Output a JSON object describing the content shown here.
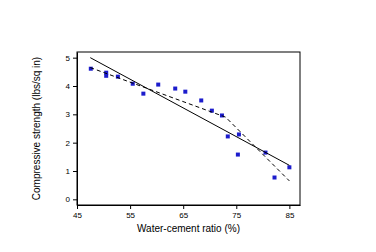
{
  "chart_data": {
    "type": "scatter",
    "x_label": "Water-cement ratio (%)",
    "y_label": "Compressive strength (lbs/sq in)",
    "xlim": [
      45,
      87
    ],
    "ylim": [
      -0.2,
      5.2
    ],
    "xticks": [
      45,
      55,
      65,
      75,
      85
    ],
    "yticks": [
      0,
      1,
      2,
      3,
      4,
      5
    ],
    "series": [
      {
        "type": "scatter",
        "marker": "square",
        "color": "#1c1ccc",
        "x": [
          47.6,
          50.5,
          50.5,
          52.7,
          55.5,
          57.5,
          60.3,
          63.5,
          65.4,
          68.4,
          70.4,
          72.3,
          73.4,
          75.5,
          75.3,
          80.5,
          82.2,
          85
        ],
        "values": [
          4.61,
          4.47,
          4.36,
          4.33,
          4.08,
          3.73,
          4.05,
          3.91,
          3.8,
          3.49,
          3.13,
          2.96,
          2.22,
          2.29,
          1.58,
          1.65,
          0.77,
          1.13
        ]
      },
      {
        "type": "line",
        "line_style": "solid",
        "color": "#000000",
        "x": [
          47.5,
          85
        ],
        "values": [
          5.0,
          1.2
        ]
      },
      {
        "type": "line",
        "line_style": "dashed",
        "color": "#000000",
        "x": [
          47.5,
          73,
          85
        ],
        "values": [
          4.65,
          2.9,
          0.65
        ]
      }
    ]
  }
}
